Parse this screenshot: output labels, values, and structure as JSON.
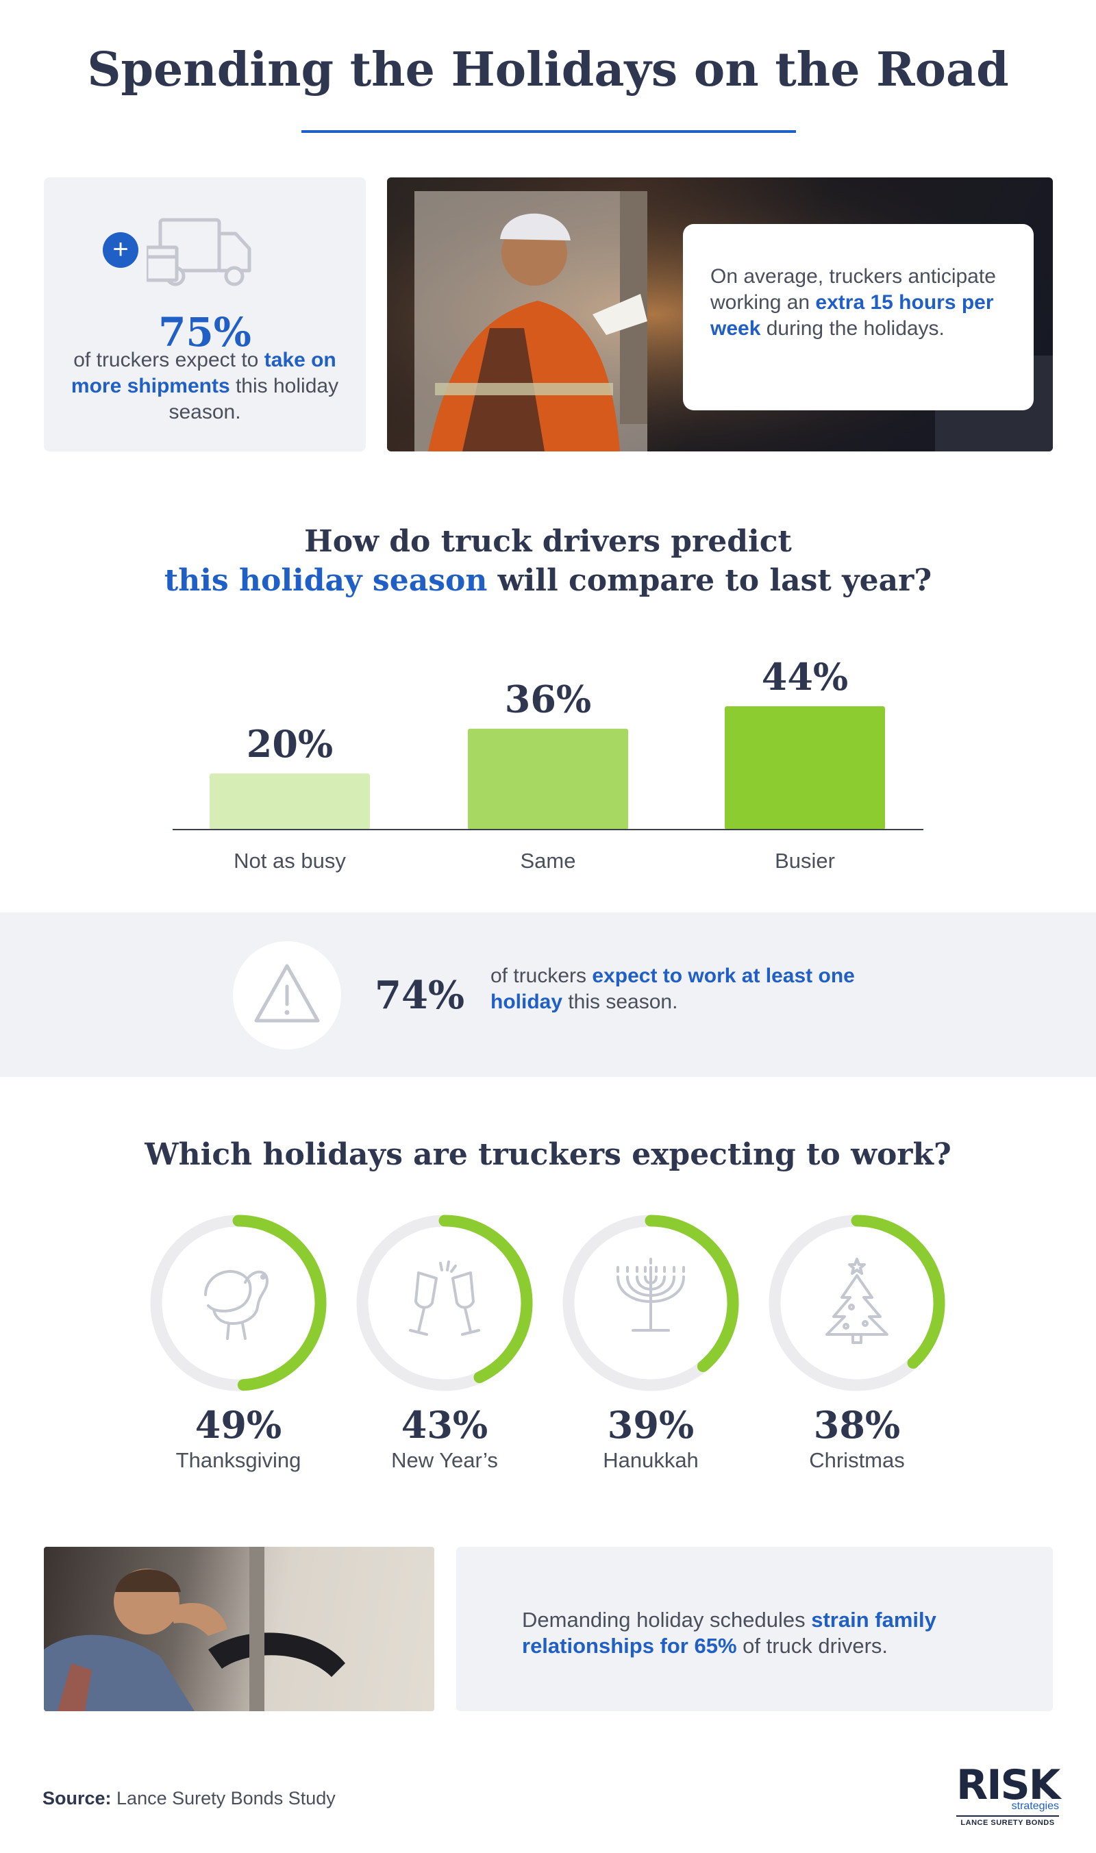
{
  "title": "Spending the Holidays on the Road",
  "stat_box": {
    "value": "75%",
    "text_pre": "of truckers expect to ",
    "text_bold": "take on more shipments",
    "text_post": " this holiday season.",
    "icon": "truck-plus-icon"
  },
  "quote_card": {
    "text_pre": "On average, truckers anticipate working an ",
    "text_bold": "extra 15 hours per week",
    "text_post": " during the holidays."
  },
  "question_1": {
    "line1": "How do truck drivers predict",
    "line2_blue": "this holiday season",
    "line2_rest": " will compare to last year?"
  },
  "chart_data": {
    "type": "bar",
    "categories": [
      "Not as busy",
      "Same",
      "Busier"
    ],
    "values": [
      20,
      36,
      44
    ],
    "value_labels": [
      "20%",
      "36%",
      "44%"
    ],
    "colors": [
      "#d6edb6",
      "#a6d862",
      "#8ccc31"
    ],
    "ylim": [
      0,
      44
    ],
    "grid": false
  },
  "band": {
    "value": "74%",
    "text_pre": "of truckers ",
    "text_bold": "expect to work at least one holiday",
    "text_post": " this season.",
    "icon": "warning-icon"
  },
  "question_2": "Which holidays are truckers expecting to work?",
  "holidays": [
    {
      "value": 49,
      "label_value": "49%",
      "label": "Thanksgiving",
      "icon": "turkey-icon"
    },
    {
      "value": 43,
      "label_value": "43%",
      "label": "New Year’s",
      "icon": "champagne-glasses-icon"
    },
    {
      "value": 39,
      "label_value": "39%",
      "label": "Hanukkah",
      "icon": "menorah-icon"
    },
    {
      "value": 38,
      "label_value": "38%",
      "label": "Christmas",
      "icon": "christmas-tree-icon"
    }
  ],
  "strain_box": {
    "text_pre": "Demanding holiday schedules ",
    "text_bold": "strain family relationships for 65%",
    "text_post": " of truck drivers."
  },
  "source": {
    "label": "Source:",
    "text": " Lance Surety Bonds Study"
  },
  "logo": {
    "word": "RISK",
    "sub": "strategies",
    "small": "LANCE SURETY BONDS"
  },
  "colors": {
    "accent": "#1f5fc6",
    "heading": "#2e3650",
    "ring_green": "#8ccc31",
    "ring_track": "#ececef",
    "panel": "#f1f2f5"
  }
}
